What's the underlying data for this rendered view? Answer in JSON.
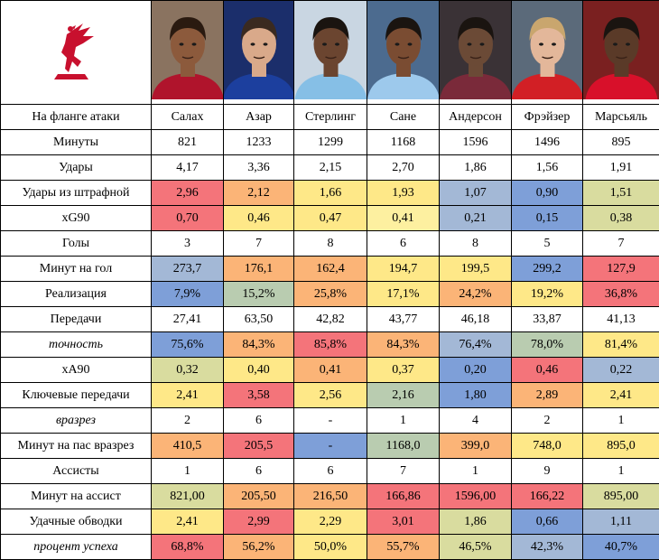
{
  "header": {
    "row_label": "На фланге атаки",
    "players": [
      "Салах",
      "Азар",
      "Стерлинг",
      "Сане",
      "Андерсон",
      "Фрэйзер",
      "Марсьяль"
    ]
  },
  "photos": [
    {
      "shirt": "#b0142c",
      "bg": "#8a7360",
      "skin": "#8c5a3c",
      "hair": "#2a1a10"
    },
    {
      "shirt": "#1c3f9e",
      "bg": "#1b2e6b",
      "skin": "#d9a98a",
      "hair": "#3a2a20"
    },
    {
      "shirt": "#86bfe6",
      "bg": "#c9d6e2",
      "skin": "#6b4530",
      "hair": "#1a1410"
    },
    {
      "shirt": "#9dc9ec",
      "bg": "#4c6b8f",
      "skin": "#7a4c32",
      "hair": "#1a1410"
    },
    {
      "shirt": "#7a2a3a",
      "bg": "#3a3236",
      "skin": "#6b4a36",
      "hair": "#1a1410"
    },
    {
      "shirt": "#d21f25",
      "bg": "#5b6a7a",
      "skin": "#e3b79a",
      "hair": "#c9a66e"
    },
    {
      "shirt": "#d8102a",
      "bg": "#7a2020",
      "skin": "#5a3a28",
      "hair": "#1a1410"
    }
  ],
  "logo": {
    "name": "liverbird-icon",
    "color": "#c8102e"
  },
  "rows": [
    {
      "label": "Минуты",
      "italic": false,
      "cells": [
        {
          "v": "821",
          "c": "white"
        },
        {
          "v": "1233",
          "c": "white"
        },
        {
          "v": "1299",
          "c": "white"
        },
        {
          "v": "1168",
          "c": "white"
        },
        {
          "v": "1596",
          "c": "white"
        },
        {
          "v": "1496",
          "c": "white"
        },
        {
          "v": "895",
          "c": "white"
        }
      ]
    },
    {
      "label": "Удары",
      "italic": false,
      "cells": [
        {
          "v": "4,17",
          "c": "white"
        },
        {
          "v": "3,36",
          "c": "white"
        },
        {
          "v": "2,15",
          "c": "white"
        },
        {
          "v": "2,70",
          "c": "white"
        },
        {
          "v": "1,86",
          "c": "white"
        },
        {
          "v": "1,56",
          "c": "white"
        },
        {
          "v": "1,91",
          "c": "white"
        }
      ]
    },
    {
      "label": "Удары из штрафной",
      "italic": false,
      "cells": [
        {
          "v": "2,96",
          "c": "red"
        },
        {
          "v": "2,12",
          "c": "orange"
        },
        {
          "v": "1,66",
          "c": "yellow"
        },
        {
          "v": "1,93",
          "c": "yellow"
        },
        {
          "v": "1,07",
          "c": "lblue"
        },
        {
          "v": "0,90",
          "c": "blue"
        },
        {
          "v": "1,51",
          "c": "olive"
        }
      ]
    },
    {
      "label": "xG90",
      "italic": false,
      "cells": [
        {
          "v": "0,70",
          "c": "red"
        },
        {
          "v": "0,46",
          "c": "yellow"
        },
        {
          "v": "0,47",
          "c": "yellow"
        },
        {
          "v": "0,41",
          "c": "lyel"
        },
        {
          "v": "0,21",
          "c": "lblue"
        },
        {
          "v": "0,15",
          "c": "blue"
        },
        {
          "v": "0,38",
          "c": "olive"
        }
      ]
    },
    {
      "label": "Голы",
      "italic": false,
      "cells": [
        {
          "v": "3",
          "c": "white"
        },
        {
          "v": "7",
          "c": "white"
        },
        {
          "v": "8",
          "c": "white"
        },
        {
          "v": "6",
          "c": "white"
        },
        {
          "v": "8",
          "c": "white"
        },
        {
          "v": "5",
          "c": "white"
        },
        {
          "v": "7",
          "c": "white"
        }
      ]
    },
    {
      "label": "Минут на гол",
      "italic": false,
      "cells": [
        {
          "v": "273,7",
          "c": "lblue"
        },
        {
          "v": "176,1",
          "c": "orange"
        },
        {
          "v": "162,4",
          "c": "orange"
        },
        {
          "v": "194,7",
          "c": "yellow"
        },
        {
          "v": "199,5",
          "c": "yellow"
        },
        {
          "v": "299,2",
          "c": "blue"
        },
        {
          "v": "127,9",
          "c": "red"
        }
      ]
    },
    {
      "label": "Реализация",
      "italic": false,
      "cells": [
        {
          "v": "7,9%",
          "c": "blue"
        },
        {
          "v": "15,2%",
          "c": "sage"
        },
        {
          "v": "25,8%",
          "c": "orange"
        },
        {
          "v": "17,1%",
          "c": "yellow"
        },
        {
          "v": "24,2%",
          "c": "orange"
        },
        {
          "v": "19,2%",
          "c": "yellow"
        },
        {
          "v": "36,8%",
          "c": "red"
        }
      ]
    },
    {
      "label": "Передачи",
      "italic": false,
      "cells": [
        {
          "v": "27,41",
          "c": "white"
        },
        {
          "v": "63,50",
          "c": "white"
        },
        {
          "v": "42,82",
          "c": "white"
        },
        {
          "v": "43,77",
          "c": "white"
        },
        {
          "v": "46,18",
          "c": "white"
        },
        {
          "v": "33,87",
          "c": "white"
        },
        {
          "v": "41,13",
          "c": "white"
        }
      ]
    },
    {
      "label": "точность",
      "italic": true,
      "cells": [
        {
          "v": "75,6%",
          "c": "blue"
        },
        {
          "v": "84,3%",
          "c": "orange"
        },
        {
          "v": "85,8%",
          "c": "red"
        },
        {
          "v": "84,3%",
          "c": "orange"
        },
        {
          "v": "76,4%",
          "c": "lblue"
        },
        {
          "v": "78,0%",
          "c": "sage"
        },
        {
          "v": "81,4%",
          "c": "yellow"
        }
      ]
    },
    {
      "label": "xA90",
      "italic": false,
      "cells": [
        {
          "v": "0,32",
          "c": "olive"
        },
        {
          "v": "0,40",
          "c": "yellow"
        },
        {
          "v": "0,41",
          "c": "orange"
        },
        {
          "v": "0,37",
          "c": "yellow"
        },
        {
          "v": "0,20",
          "c": "blue"
        },
        {
          "v": "0,46",
          "c": "red"
        },
        {
          "v": "0,22",
          "c": "lblue"
        }
      ]
    },
    {
      "label": "Ключевые передачи",
      "italic": false,
      "cells": [
        {
          "v": "2,41",
          "c": "yellow"
        },
        {
          "v": "3,58",
          "c": "red"
        },
        {
          "v": "2,56",
          "c": "yellow"
        },
        {
          "v": "2,16",
          "c": "sage"
        },
        {
          "v": "1,80",
          "c": "blue"
        },
        {
          "v": "2,89",
          "c": "orange"
        },
        {
          "v": "2,41",
          "c": "yellow"
        }
      ]
    },
    {
      "label": "вразрез",
      "italic": true,
      "cells": [
        {
          "v": "2",
          "c": "white"
        },
        {
          "v": "6",
          "c": "white"
        },
        {
          "v": "-",
          "c": "white"
        },
        {
          "v": "1",
          "c": "white"
        },
        {
          "v": "4",
          "c": "white"
        },
        {
          "v": "2",
          "c": "white"
        },
        {
          "v": "1",
          "c": "white"
        }
      ]
    },
    {
      "label": "Минут на пас вразрез",
      "italic": false,
      "cells": [
        {
          "v": "410,5",
          "c": "orange"
        },
        {
          "v": "205,5",
          "c": "red"
        },
        {
          "v": "-",
          "c": "blue"
        },
        {
          "v": "1168,0",
          "c": "sage"
        },
        {
          "v": "399,0",
          "c": "orange"
        },
        {
          "v": "748,0",
          "c": "yellow"
        },
        {
          "v": "895,0",
          "c": "yellow"
        }
      ]
    },
    {
      "label": "Ассисты",
      "italic": false,
      "cells": [
        {
          "v": "1",
          "c": "white"
        },
        {
          "v": "6",
          "c": "white"
        },
        {
          "v": "6",
          "c": "white"
        },
        {
          "v": "7",
          "c": "white"
        },
        {
          "v": "1",
          "c": "white"
        },
        {
          "v": "9",
          "c": "white"
        },
        {
          "v": "1",
          "c": "white"
        }
      ]
    },
    {
      "label": "Минут на ассист",
      "italic": false,
      "cells": [
        {
          "v": "821,00",
          "c": "olive"
        },
        {
          "v": "205,50",
          "c": "orange"
        },
        {
          "v": "216,50",
          "c": "orange"
        },
        {
          "v": "166,86",
          "c": "red"
        },
        {
          "v": "1596,00",
          "c": "red"
        },
        {
          "v": "166,22",
          "c": "red"
        },
        {
          "v": "895,00",
          "c": "olive"
        }
      ]
    },
    {
      "label": "Удачные обводки",
      "italic": false,
      "cells": [
        {
          "v": "2,41",
          "c": "yellow"
        },
        {
          "v": "2,99",
          "c": "red"
        },
        {
          "v": "2,29",
          "c": "yellow"
        },
        {
          "v": "3,01",
          "c": "red"
        },
        {
          "v": "1,86",
          "c": "olive"
        },
        {
          "v": "0,66",
          "c": "blue"
        },
        {
          "v": "1,11",
          "c": "lblue"
        }
      ]
    },
    {
      "label": "процент успеха",
      "italic": true,
      "cells": [
        {
          "v": "68,8%",
          "c": "red"
        },
        {
          "v": "56,2%",
          "c": "orange"
        },
        {
          "v": "50,0%",
          "c": "yellow"
        },
        {
          "v": "55,7%",
          "c": "orange"
        },
        {
          "v": "46,5%",
          "c": "olive"
        },
        {
          "v": "42,3%",
          "c": "lblue"
        },
        {
          "v": "40,7%",
          "c": "blue"
        }
      ]
    }
  ]
}
